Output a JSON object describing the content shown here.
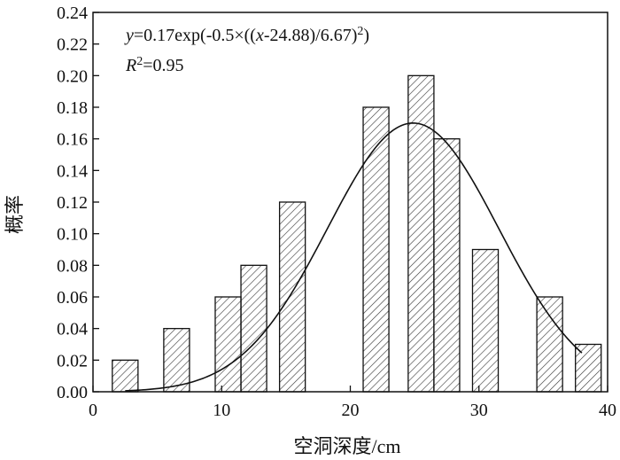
{
  "chart_data": {
    "type": "bar",
    "title": "",
    "xlabel": "空洞深度/cm",
    "ylabel": "概率",
    "xlim": [
      0,
      40
    ],
    "ylim": [
      0,
      0.24
    ],
    "x_ticks": [
      "0",
      "10",
      "20",
      "30",
      "40"
    ],
    "y_ticks": [
      "0.00",
      "0.02",
      "0.04",
      "0.06",
      "0.08",
      "0.10",
      "0.12",
      "0.14",
      "0.16",
      "0.18",
      "0.20",
      "0.22",
      "0.24"
    ],
    "grid": false,
    "bars": [
      {
        "x": 2.5,
        "value": 0.02
      },
      {
        "x": 6.5,
        "value": 0.04
      },
      {
        "x": 10.5,
        "value": 0.06
      },
      {
        "x": 12.5,
        "value": 0.08
      },
      {
        "x": 15.5,
        "value": 0.12
      },
      {
        "x": 22.0,
        "value": 0.18
      },
      {
        "x": 25.5,
        "value": 0.2
      },
      {
        "x": 27.5,
        "value": 0.16
      },
      {
        "x": 30.5,
        "value": 0.09
      },
      {
        "x": 35.5,
        "value": 0.06
      },
      {
        "x": 38.5,
        "value": 0.03
      }
    ],
    "bar_width": 2.0,
    "fit_curve": {
      "type": "gaussian",
      "a": 0.17,
      "mu": 24.88,
      "sigma": 6.67,
      "x_range": [
        2.5,
        38.0
      ]
    },
    "annotation": {
      "y": "y",
      "mid1": "=0.17exp(-0.5×((",
      "x": "x",
      "mid2": "-24.88)/6.67)",
      "sup": "2",
      "close": ")",
      "r": "R",
      "r_sup": "2",
      "r_val": "=0.95"
    }
  }
}
